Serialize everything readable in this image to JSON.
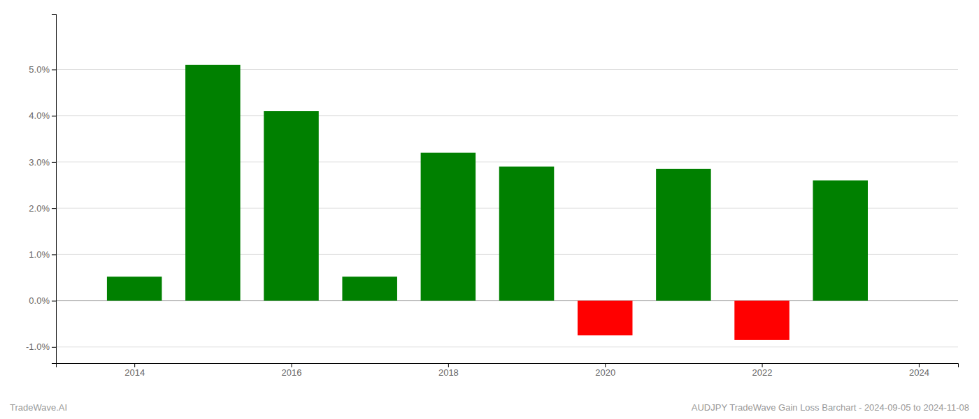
{
  "chart_data": {
    "type": "bar",
    "title": "AUDJPY TradeWave Gain Loss Barchart - 2024-09-05 to 2024-11-08",
    "annotations": [
      "TradeWave.AI"
    ],
    "x": [
      2014,
      2015,
      2016,
      2017,
      2018,
      2019,
      2020,
      2021,
      2022,
      2023
    ],
    "values": [
      0.0052,
      0.051,
      0.041,
      0.0052,
      0.032,
      0.029,
      -0.0075,
      0.0285,
      -0.0085,
      0.026
    ],
    "colors": [
      "#008000",
      "#008000",
      "#008000",
      "#008000",
      "#008000",
      "#008000",
      "#FF0000",
      "#008000",
      "#FF0000",
      "#008000"
    ],
    "xlim": [
      2013.0,
      2024.5
    ],
    "xticks": [
      2014,
      2016,
      2018,
      2020,
      2022,
      2024
    ],
    "ylim": [
      -0.0135,
      0.062
    ],
    "yticks": [
      {
        "value": -0.01,
        "label": "-1.0%"
      },
      {
        "value": 0.0,
        "label": "0.0%"
      },
      {
        "value": 0.01,
        "label": "1.0%"
      },
      {
        "value": 0.02,
        "label": "2.0%"
      },
      {
        "value": 0.03,
        "label": "3.0%"
      },
      {
        "value": 0.04,
        "label": "4.0%"
      },
      {
        "value": 0.05,
        "label": "5.0%"
      }
    ],
    "grid": true
  }
}
